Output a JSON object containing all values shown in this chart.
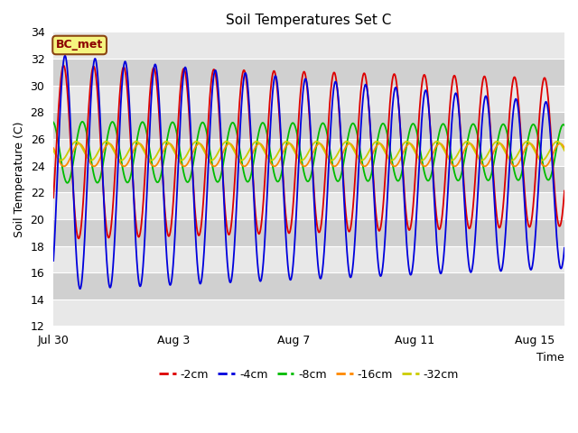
{
  "title": "Soil Temperatures Set C",
  "xlabel": "Time",
  "ylabel": "Soil Temperature (C)",
  "ylim": [
    12,
    34
  ],
  "yticks": [
    12,
    14,
    16,
    18,
    20,
    22,
    24,
    26,
    28,
    30,
    32,
    34
  ],
  "xtick_labels": [
    "Jul 30",
    "Aug 3",
    "Aug 7",
    "Aug 11",
    "Aug 15"
  ],
  "xtick_days": [
    0,
    4,
    8,
    12,
    16
  ],
  "annotation": "BC_met",
  "colors": {
    "-2cm": "#dd0000",
    "-4cm": "#0000dd",
    "-8cm": "#00bb00",
    "-16cm": "#ff8800",
    "-32cm": "#cccc00"
  },
  "legend_labels": [
    "-2cm",
    "-4cm",
    "-8cm",
    "-16cm",
    "-32cm"
  ],
  "legend_colors": [
    "#dd0000",
    "#0000dd",
    "#00bb00",
    "#ff8800",
    "#cccc00"
  ],
  "fig_bg": "#ffffff",
  "plot_bg_light": "#e8e8e8",
  "plot_bg_dark": "#d0d0d0",
  "grid_color": "#ffffff",
  "num_days": 17,
  "mean_2cm": 25.0,
  "amp_2cm": 6.5,
  "phase_2cm": -0.55,
  "mean_4cm": 23.5,
  "amp_4cm": 8.8,
  "phase_4cm": -0.85,
  "mean_8cm": 25.0,
  "amp_8cm": 2.3,
  "phase_8cm": 1.8,
  "mean_16cm": 24.8,
  "amp_16cm": 0.85,
  "phase_16cm": 2.5,
  "mean_32cm": 25.1,
  "amp_32cm": 0.7,
  "phase_32cm": 3.1,
  "trend_4cm": -0.06,
  "trend_amp_4cm": -0.1
}
